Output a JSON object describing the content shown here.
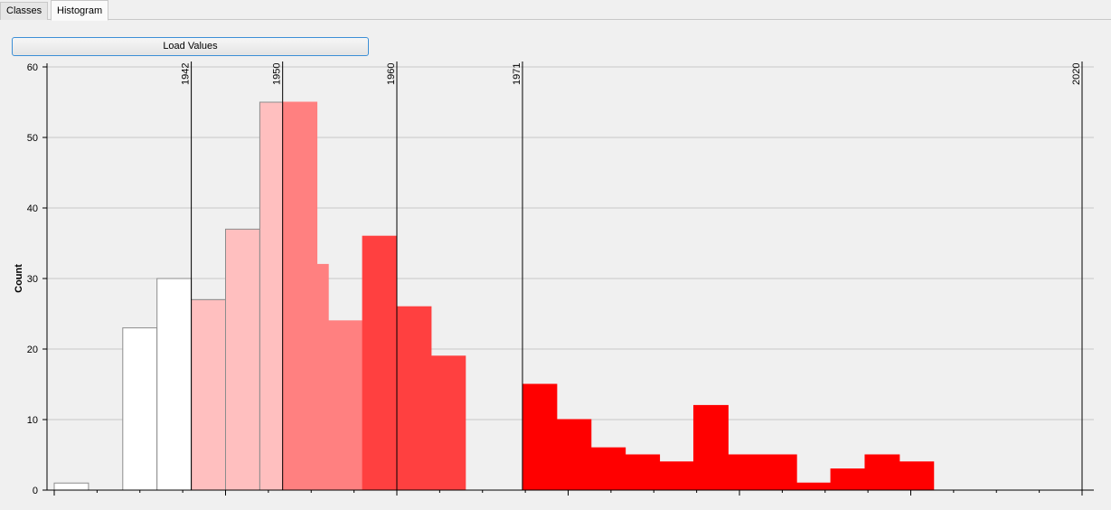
{
  "tabs": [
    {
      "label": "Classes",
      "active": false
    },
    {
      "label": "Histogram",
      "active": true
    }
  ],
  "load_button": {
    "label": "Load Values"
  },
  "chart_data": {
    "type": "bar",
    "ylabel": "Count",
    "xlabel": "",
    "ylim": [
      0,
      60
    ],
    "xlim": [
      1930,
      2020
    ],
    "y_ticks": [
      0,
      10,
      20,
      30,
      40,
      50,
      60
    ],
    "grid": true,
    "bin_width": 3,
    "bins": [
      {
        "start": 1930,
        "count": 1,
        "color": "#ffffff"
      },
      {
        "start": 1936,
        "count": 23,
        "color": "#ffffff"
      },
      {
        "start": 1939,
        "count": 30,
        "color": "#ffffff"
      },
      {
        "start": 1942,
        "count": 27,
        "color": "#ffffff"
      },
      {
        "start": 1942,
        "count": 27,
        "color": "#ffbfbf"
      },
      {
        "start": 1945,
        "count": 37,
        "color": "#ffbfbf"
      },
      {
        "start": 1948,
        "count": 55,
        "color": "#ffbfbf"
      },
      {
        "start": 1950,
        "count": 55,
        "color": "#ff8080"
      },
      {
        "start": 1951,
        "count": 32,
        "color": "#ff8080"
      },
      {
        "start": 1954,
        "count": 24,
        "color": "#ff8080"
      },
      {
        "start": 1957,
        "count": 36,
        "color": "#ff4040"
      },
      {
        "start": 1960,
        "count": 26,
        "color": "#ff4040"
      },
      {
        "start": 1963,
        "count": 19,
        "color": "#ff4040"
      },
      {
        "start": 1971,
        "count": 15,
        "color": "#ff0000"
      },
      {
        "start": 1974,
        "count": 10,
        "color": "#ff0000"
      },
      {
        "start": 1977,
        "count": 6,
        "color": "#ff0000"
      },
      {
        "start": 1980,
        "count": 5,
        "color": "#ff0000"
      },
      {
        "start": 1983,
        "count": 4,
        "color": "#ff0000"
      },
      {
        "start": 1986,
        "count": 12,
        "color": "#ff0000"
      },
      {
        "start": 1989,
        "count": 5,
        "color": "#ff0000"
      },
      {
        "start": 1992,
        "count": 5,
        "color": "#ff0000"
      },
      {
        "start": 1995,
        "count": 1,
        "color": "#ff0000"
      },
      {
        "start": 1998,
        "count": 3,
        "color": "#ff0000"
      },
      {
        "start": 2001,
        "count": 5,
        "color": "#ff0000"
      },
      {
        "start": 2004,
        "count": 4,
        "color": "#ff0000"
      }
    ],
    "class_breaks": [
      "1942",
      "1950",
      "1960",
      "1971",
      "2020"
    ]
  }
}
